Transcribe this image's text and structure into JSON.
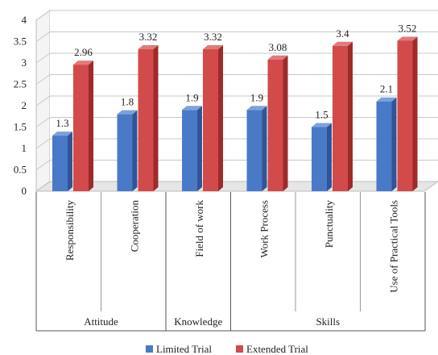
{
  "chart_data": {
    "type": "bar",
    "categories": [
      "Responsibility",
      "Cooperation",
      "Field of work",
      "Work Process",
      "Punctuality",
      "Use of Practical Tools"
    ],
    "groups": [
      {
        "label": "Attitude",
        "span": 2
      },
      {
        "label": "Knowledge",
        "span": 1
      },
      {
        "label": "Skills",
        "span": 3
      }
    ],
    "series": [
      {
        "name": "Limited Trial",
        "values": [
          1.3,
          1.8,
          1.9,
          1.9,
          1.5,
          2.1
        ],
        "labels": [
          "1.3",
          "1.8",
          "1.9",
          "1.9",
          "1.5",
          "2.1"
        ],
        "color": "#4a7ac7",
        "side": "#2f5597",
        "top": "#7aa2dc"
      },
      {
        "name": "Extended Trial",
        "values": [
          2.96,
          3.32,
          3.32,
          3.08,
          3.4,
          3.52
        ],
        "labels": [
          "2.96",
          "3.32",
          "3.32",
          "3.08",
          "3.4",
          "3.52"
        ],
        "color": "#d24a4a",
        "side": "#9e2a2a",
        "top": "#e07a7a"
      }
    ],
    "ylim": [
      0,
      4
    ],
    "yticks": [
      "0",
      "0.5",
      "1",
      "1.5",
      "2",
      "2.5",
      "3",
      "3.5",
      "4"
    ],
    "grid": true,
    "legend": "bottom-center"
  }
}
